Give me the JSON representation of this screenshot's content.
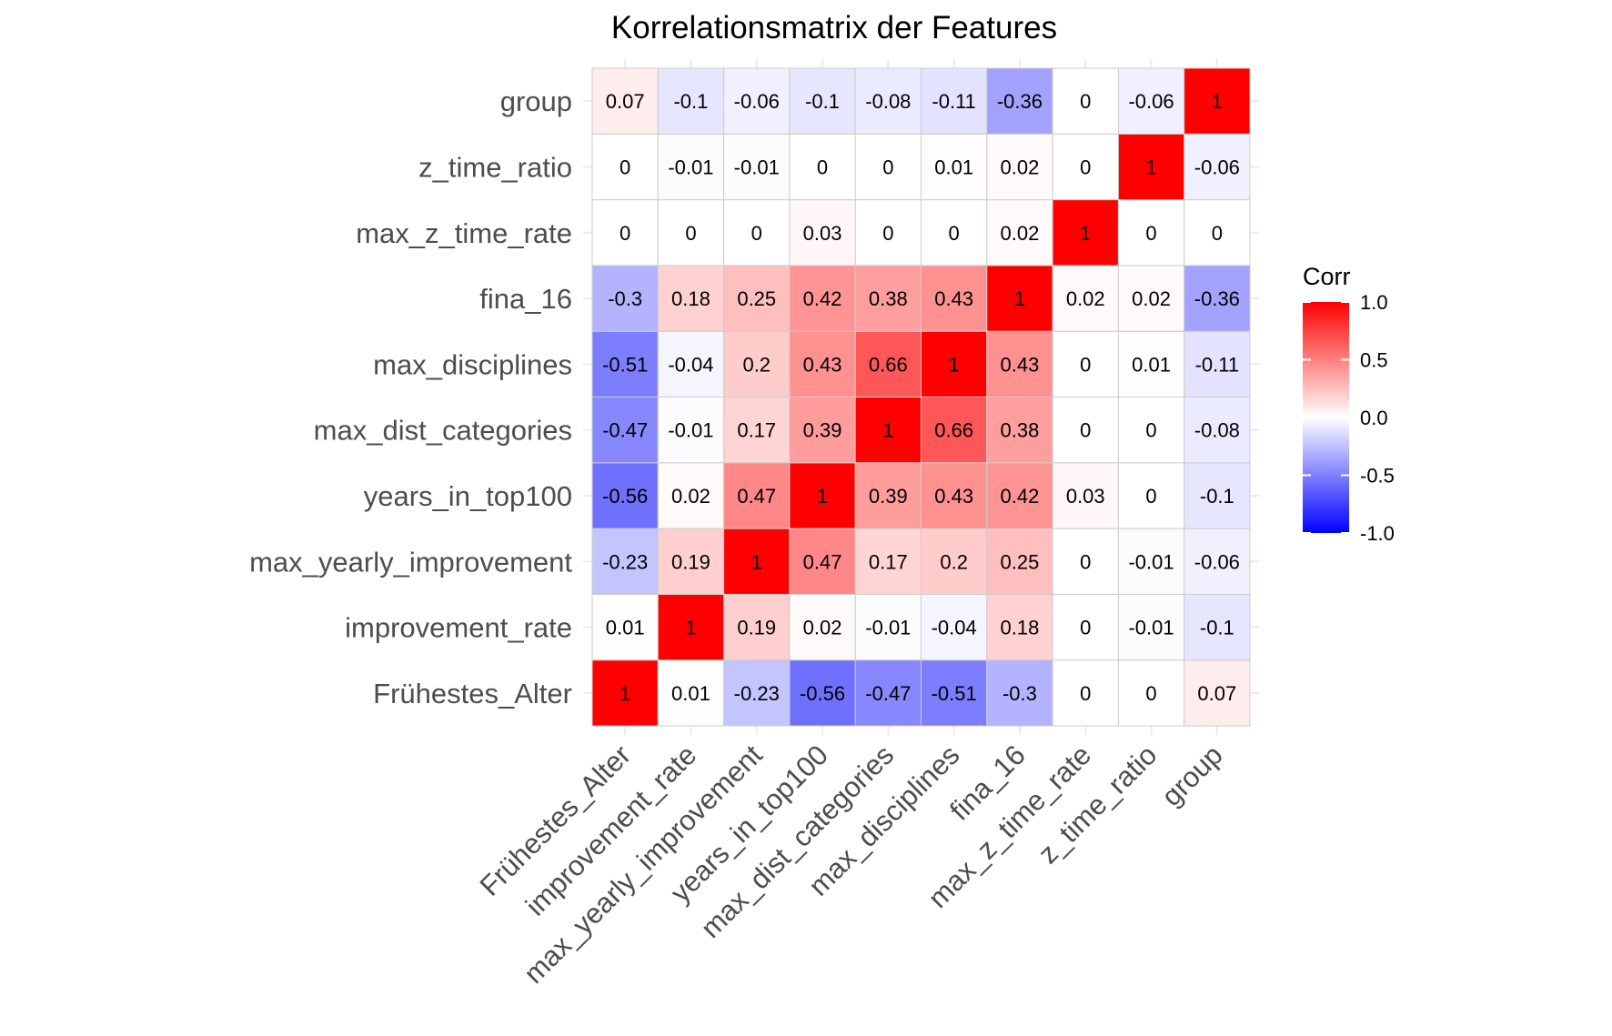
{
  "chart_data": {
    "type": "heatmap",
    "title": "Korrelationsmatrix der Features",
    "xlabel": "",
    "ylabel": "",
    "variables": [
      "Frühestes_Alter",
      "improvement_rate",
      "max_yearly_improvement",
      "years_in_top100",
      "max_dist_categories",
      "max_disciplines",
      "fina_16",
      "max_z_time_rate",
      "z_time_ratio",
      "group"
    ],
    "matrix": [
      [
        1,
        0.01,
        -0.23,
        -0.56,
        -0.47,
        -0.51,
        -0.3,
        0,
        0,
        0.07
      ],
      [
        0.01,
        1,
        0.19,
        0.02,
        -0.01,
        -0.04,
        0.18,
        0,
        -0.01,
        -0.1
      ],
      [
        -0.23,
        0.19,
        1,
        0.47,
        0.17,
        0.2,
        0.25,
        0,
        -0.01,
        -0.06
      ],
      [
        -0.56,
        0.02,
        0.47,
        1,
        0.39,
        0.43,
        0.42,
        0.03,
        0,
        -0.1
      ],
      [
        -0.47,
        -0.01,
        0.17,
        0.39,
        1,
        0.66,
        0.38,
        0,
        0,
        -0.08
      ],
      [
        -0.51,
        -0.04,
        0.2,
        0.43,
        0.66,
        1,
        0.43,
        0,
        0.01,
        -0.11
      ],
      [
        -0.3,
        0.18,
        0.25,
        0.42,
        0.38,
        0.43,
        1,
        0.02,
        0.02,
        -0.36
      ],
      [
        0,
        0,
        0,
        0.03,
        0,
        0,
        0.02,
        1,
        0,
        0
      ],
      [
        0,
        -0.01,
        -0.01,
        0,
        0,
        0.01,
        0.02,
        0,
        1,
        -0.06
      ],
      [
        0.07,
        -0.1,
        -0.06,
        -0.1,
        -0.08,
        -0.11,
        -0.36,
        0,
        -0.06,
        1
      ]
    ],
    "value_range": [
      -1,
      1
    ],
    "legend": {
      "title": "Corr",
      "position": "right",
      "ticks": [
        "1.0",
        "0.5",
        "0.0",
        "-0.5",
        "-1.0"
      ],
      "tick_values": [
        1,
        0.5,
        0,
        -0.5,
        -1
      ]
    },
    "colors": {
      "low": "#0000ff",
      "mid": "#ffffff",
      "high": "#ff0000",
      "cell_border": "#cccccc",
      "grid": "#ebebeb"
    }
  }
}
